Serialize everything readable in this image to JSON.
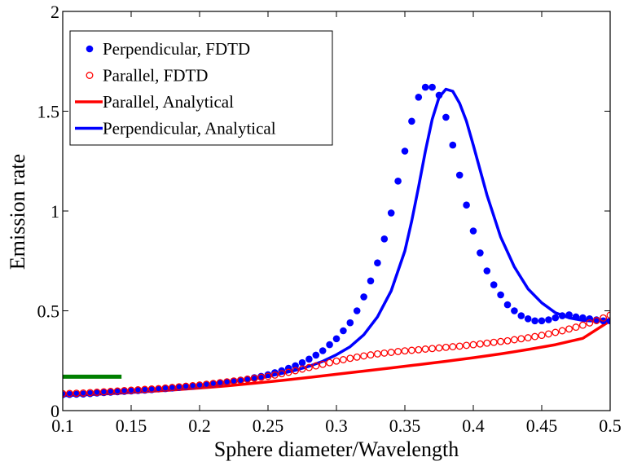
{
  "chart_data": {
    "type": "line",
    "title": "",
    "xlabel": "Sphere diameter/Wavelength",
    "ylabel": "Emission rate",
    "xlim": [
      0.1,
      0.5
    ],
    "ylim": [
      0,
      2
    ],
    "xticks": [
      0.1,
      0.15,
      0.2,
      0.25,
      0.3,
      0.35,
      0.4,
      0.45,
      0.5
    ],
    "xtick_labels": [
      "0.1",
      "0.15",
      "0.2",
      "0.25",
      "0.3",
      "0.35",
      "0.4",
      "0.45",
      "0.5"
    ],
    "yticks": [
      0,
      0.5,
      1,
      1.5,
      2
    ],
    "ytick_labels": [
      "0",
      "0.5",
      "1",
      "1.5",
      "2"
    ],
    "grid": false,
    "legend_position": "top-left",
    "series": [
      {
        "name": "Perpendicular, FDTD",
        "style": "filled-dots",
        "color": "#0000ff",
        "x": [
          0.1,
          0.105,
          0.11,
          0.115,
          0.12,
          0.125,
          0.13,
          0.135,
          0.14,
          0.145,
          0.15,
          0.155,
          0.16,
          0.165,
          0.17,
          0.175,
          0.18,
          0.185,
          0.19,
          0.195,
          0.2,
          0.205,
          0.21,
          0.215,
          0.22,
          0.225,
          0.23,
          0.235,
          0.24,
          0.245,
          0.25,
          0.255,
          0.26,
          0.265,
          0.27,
          0.275,
          0.28,
          0.285,
          0.29,
          0.295,
          0.3,
          0.305,
          0.31,
          0.315,
          0.32,
          0.325,
          0.33,
          0.335,
          0.34,
          0.345,
          0.35,
          0.355,
          0.36,
          0.365,
          0.37,
          0.375,
          0.38,
          0.385,
          0.39,
          0.395,
          0.4,
          0.405,
          0.41,
          0.415,
          0.42,
          0.425,
          0.43,
          0.435,
          0.44,
          0.445,
          0.45,
          0.455,
          0.46,
          0.465,
          0.47,
          0.475,
          0.48,
          0.485,
          0.49,
          0.495,
          0.5
        ],
        "y": [
          0.08,
          0.081,
          0.082,
          0.083,
          0.085,
          0.088,
          0.09,
          0.092,
          0.094,
          0.096,
          0.098,
          0.1,
          0.102,
          0.105,
          0.108,
          0.11,
          0.113,
          0.116,
          0.119,
          0.122,
          0.126,
          0.13,
          0.134,
          0.138,
          0.143,
          0.148,
          0.153,
          0.158,
          0.165,
          0.172,
          0.18,
          0.19,
          0.2,
          0.212,
          0.225,
          0.24,
          0.258,
          0.278,
          0.3,
          0.33,
          0.36,
          0.4,
          0.44,
          0.5,
          0.57,
          0.65,
          0.74,
          0.86,
          0.99,
          1.15,
          1.3,
          1.45,
          1.57,
          1.62,
          1.62,
          1.58,
          1.47,
          1.33,
          1.18,
          1.03,
          0.9,
          0.79,
          0.7,
          0.63,
          0.58,
          0.53,
          0.5,
          0.475,
          0.46,
          0.45,
          0.45,
          0.455,
          0.465,
          0.475,
          0.48,
          0.47,
          0.465,
          0.46,
          0.455,
          0.45,
          0.45
        ]
      },
      {
        "name": "Parallel, FDTD",
        "style": "open-circles",
        "color": "#ff0000",
        "x": [
          0.1,
          0.105,
          0.11,
          0.115,
          0.12,
          0.125,
          0.13,
          0.135,
          0.14,
          0.145,
          0.15,
          0.155,
          0.16,
          0.165,
          0.17,
          0.175,
          0.18,
          0.185,
          0.19,
          0.195,
          0.2,
          0.205,
          0.21,
          0.215,
          0.22,
          0.225,
          0.23,
          0.235,
          0.24,
          0.245,
          0.25,
          0.255,
          0.26,
          0.265,
          0.27,
          0.275,
          0.28,
          0.285,
          0.29,
          0.295,
          0.3,
          0.305,
          0.31,
          0.315,
          0.32,
          0.325,
          0.33,
          0.335,
          0.34,
          0.345,
          0.35,
          0.355,
          0.36,
          0.365,
          0.37,
          0.375,
          0.38,
          0.385,
          0.39,
          0.395,
          0.4,
          0.405,
          0.41,
          0.415,
          0.42,
          0.425,
          0.43,
          0.435,
          0.44,
          0.445,
          0.45,
          0.455,
          0.46,
          0.465,
          0.47,
          0.475,
          0.48,
          0.485,
          0.49,
          0.495,
          0.5
        ],
        "y": [
          0.085,
          0.086,
          0.087,
          0.088,
          0.09,
          0.092,
          0.094,
          0.096,
          0.098,
          0.1,
          0.102,
          0.104,
          0.106,
          0.108,
          0.11,
          0.113,
          0.116,
          0.119,
          0.122,
          0.125,
          0.128,
          0.132,
          0.136,
          0.14,
          0.144,
          0.148,
          0.152,
          0.157,
          0.162,
          0.167,
          0.172,
          0.178,
          0.185,
          0.192,
          0.2,
          0.208,
          0.216,
          0.224,
          0.232,
          0.24,
          0.248,
          0.255,
          0.262,
          0.268,
          0.274,
          0.279,
          0.284,
          0.288,
          0.292,
          0.296,
          0.299,
          0.302,
          0.305,
          0.308,
          0.311,
          0.314,
          0.317,
          0.32,
          0.323,
          0.327,
          0.33,
          0.334,
          0.338,
          0.342,
          0.346,
          0.35,
          0.355,
          0.36,
          0.365,
          0.371,
          0.377,
          0.384,
          0.392,
          0.4,
          0.409,
          0.418,
          0.428,
          0.439,
          0.451,
          0.464,
          0.478
        ]
      },
      {
        "name": "Parallel, Analytical",
        "style": "line",
        "color": "#ff0000",
        "x": [
          0.1,
          0.12,
          0.14,
          0.16,
          0.18,
          0.2,
          0.22,
          0.24,
          0.26,
          0.28,
          0.3,
          0.32,
          0.34,
          0.36,
          0.38,
          0.4,
          0.42,
          0.44,
          0.46,
          0.48,
          0.5
        ],
        "y": [
          0.075,
          0.08,
          0.087,
          0.095,
          0.103,
          0.113,
          0.124,
          0.137,
          0.151,
          0.166,
          0.182,
          0.198,
          0.214,
          0.23,
          0.247,
          0.265,
          0.284,
          0.306,
          0.33,
          0.362,
          0.45
        ]
      },
      {
        "name": "Perpendicular, Analytical",
        "style": "line",
        "color": "#0000ff",
        "x": [
          0.1,
          0.11,
          0.12,
          0.13,
          0.14,
          0.15,
          0.16,
          0.17,
          0.18,
          0.19,
          0.2,
          0.21,
          0.22,
          0.23,
          0.24,
          0.25,
          0.26,
          0.27,
          0.28,
          0.29,
          0.3,
          0.31,
          0.32,
          0.33,
          0.34,
          0.35,
          0.355,
          0.36,
          0.365,
          0.37,
          0.375,
          0.38,
          0.385,
          0.39,
          0.395,
          0.4,
          0.41,
          0.42,
          0.43,
          0.44,
          0.45,
          0.46,
          0.47,
          0.48,
          0.49,
          0.5
        ],
        "y": [
          0.075,
          0.078,
          0.082,
          0.086,
          0.09,
          0.095,
          0.1,
          0.105,
          0.111,
          0.117,
          0.124,
          0.132,
          0.14,
          0.15,
          0.16,
          0.172,
          0.186,
          0.202,
          0.222,
          0.247,
          0.28,
          0.32,
          0.38,
          0.47,
          0.6,
          0.8,
          0.95,
          1.12,
          1.3,
          1.46,
          1.57,
          1.61,
          1.6,
          1.54,
          1.45,
          1.33,
          1.08,
          0.87,
          0.72,
          0.61,
          0.54,
          0.49,
          0.465,
          0.452,
          0.448,
          0.455
        ]
      },
      {
        "name": "",
        "style": "line",
        "color": "#007f00",
        "x": [
          0.1,
          0.143
        ],
        "y": [
          0.17,
          0.17
        ]
      }
    ]
  }
}
